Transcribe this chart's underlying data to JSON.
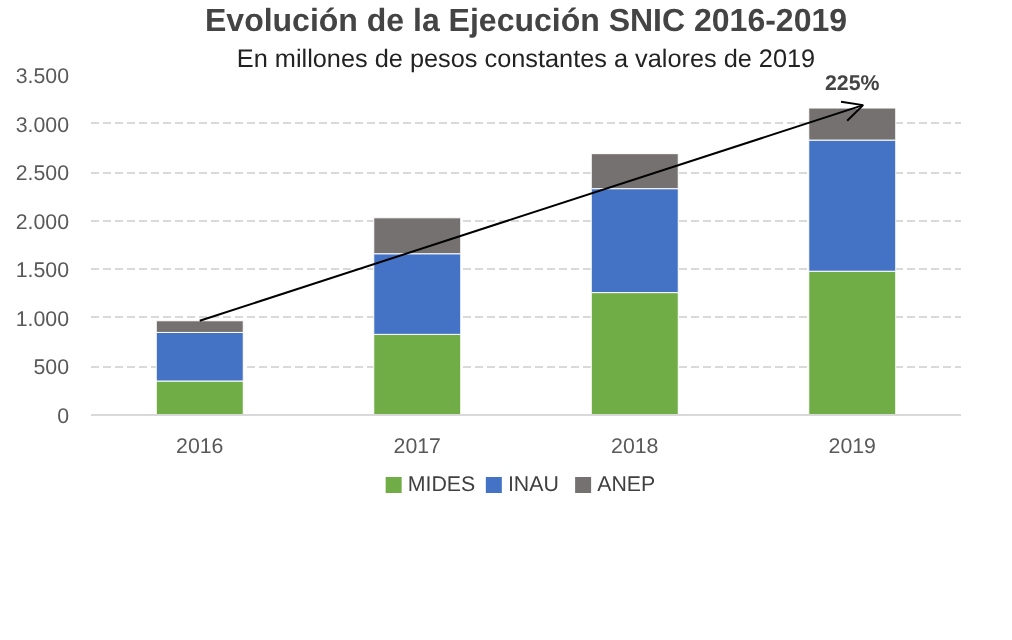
{
  "chart_data": {
    "type": "bar",
    "stacked": true,
    "title": "Evolución de la Ejecución SNIC 2016-2019",
    "subtitle": "En millones de pesos constantes a valores de 2019",
    "categories": [
      "2016",
      "2017",
      "2018",
      "2019"
    ],
    "series": [
      {
        "name": "MIDES",
        "color": "#70ad47",
        "values": [
          350,
          830,
          1260,
          1480
        ]
      },
      {
        "name": "INAU",
        "color": "#4472c4",
        "values": [
          500,
          830,
          1070,
          1350
        ]
      },
      {
        "name": "ANEP",
        "color": "#767171",
        "values": [
          120,
          370,
          360,
          330
        ]
      }
    ],
    "ylim": [
      0,
      3500
    ],
    "yticks": [
      0,
      500,
      {
        "value": 1000,
        "label": "1.000"
      },
      {
        "value": 1500,
        "label": "1.500"
      },
      {
        "value": 2000,
        "label": "2.000"
      },
      {
        "value": 2500,
        "label": "2.500"
      },
      {
        "value": 3000,
        "label": "3.000"
      },
      {
        "value": 3500,
        "label": "3.500"
      }
    ],
    "annotations": [
      "225%"
    ],
    "grid": "y",
    "legend": "bottom"
  }
}
